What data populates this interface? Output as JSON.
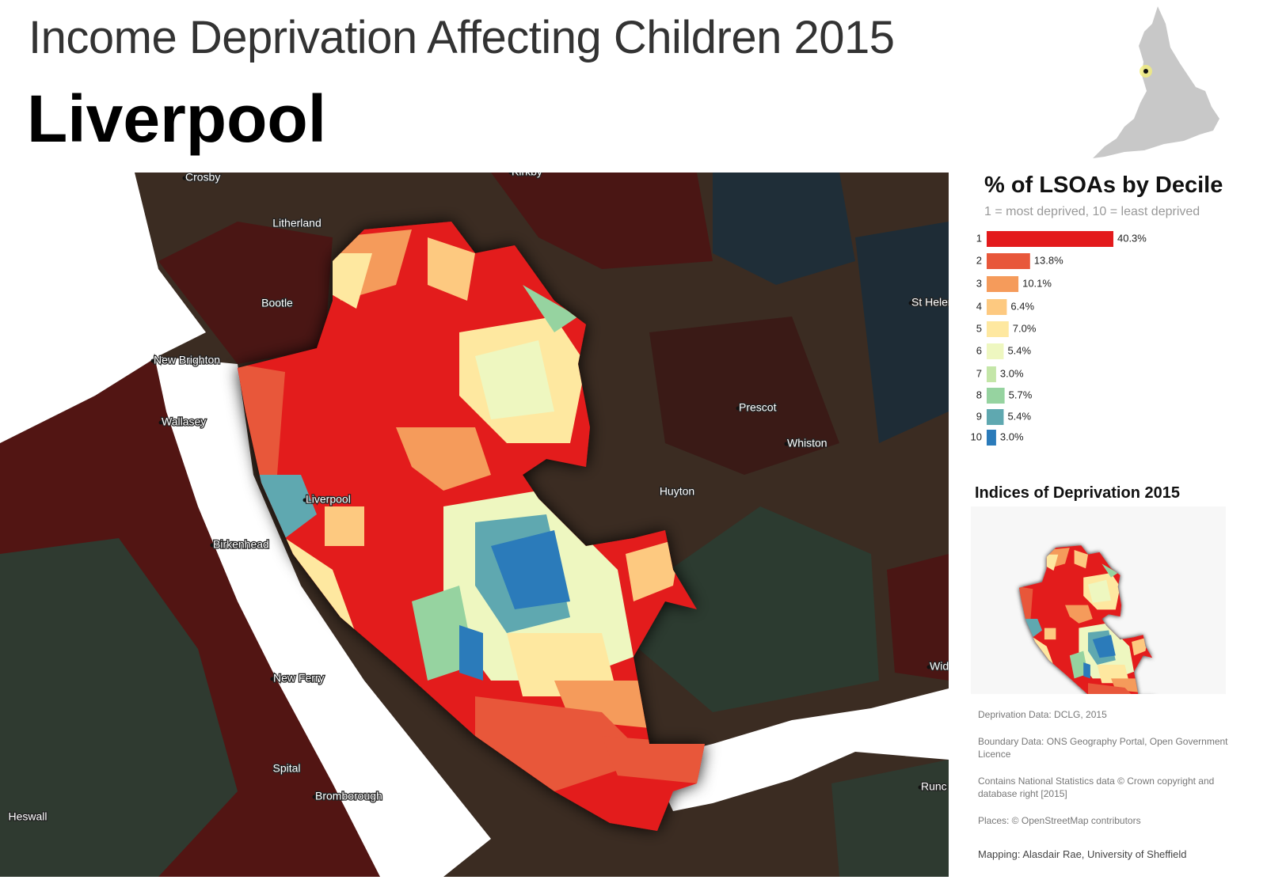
{
  "title": "Income Deprivation Affecting Children 2015",
  "place": "Liverpool",
  "places": [
    "Crosby",
    "Kirkby",
    "Litherland",
    "Bootle",
    "St Helen",
    "New Brighton",
    "Wallasey",
    "Prescot",
    "Whiston",
    "Huyton",
    "Liverpool",
    "Birkenhead",
    "New Ferry",
    "Spital",
    "Bromborough",
    "Heswall",
    "Wid",
    "Runc"
  ],
  "chart_data": {
    "type": "bar",
    "orientation": "horizontal",
    "title": "% of LSOAs by Decile",
    "subtitle": "1 = most deprived, 10 = least deprived",
    "categories": [
      "1",
      "2",
      "3",
      "4",
      "5",
      "6",
      "7",
      "8",
      "9",
      "10"
    ],
    "values": [
      40.3,
      13.8,
      10.1,
      6.4,
      7.0,
      5.4,
      3.0,
      5.7,
      5.4,
      3.0
    ],
    "value_labels": [
      "40.3%",
      "13.8%",
      "10.1%",
      "6.4%",
      "7.0%",
      "5.4%",
      "3.0%",
      "5.7%",
      "5.4%",
      "3.0%"
    ],
    "colors": [
      "#e31a1c",
      "#e8573a",
      "#f59b5b",
      "#fdc980",
      "#fee8a0",
      "#eef7c0",
      "#c4e6a8",
      "#96d3a0",
      "#5fa8b0",
      "#2b7bba"
    ]
  },
  "inset_title": "Indices of Deprivation 2015",
  "credits": [
    "Deprivation Data: DCLG, 2015",
    "Boundary Data: ONS Geography Portal, Open Government Licence",
    "Contains National Statistics data © Crown copyright and database right [2015]",
    "Places: © OpenStreetMap contributors",
    "Mapping: Alasdair Rae, University of Sheffield"
  ]
}
